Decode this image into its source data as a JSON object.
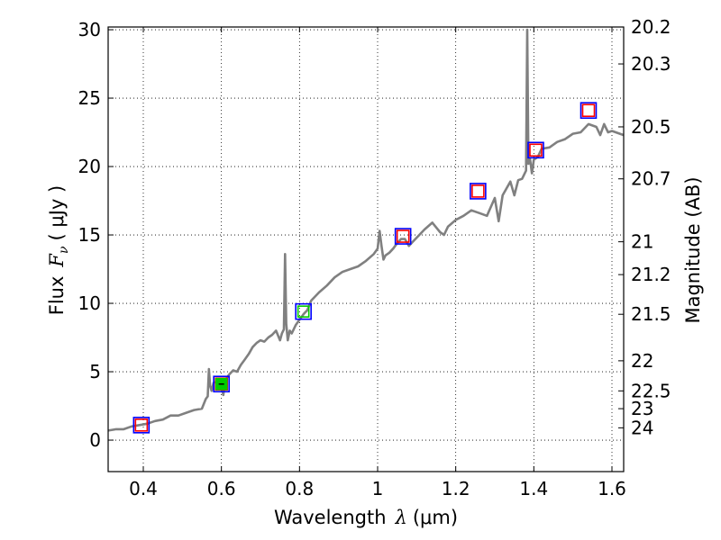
{
  "chart_data": {
    "type": "line",
    "xlabel_text": "Wavelength",
    "xlabel_unit": "(μm)",
    "ylabel_text": "Flux",
    "ylabel_unit": "(  μJy )",
    "y2label": "Magnitude (AB)",
    "xlim": [
      0.31,
      1.63
    ],
    "ylim": [
      -2.3,
      30.2
    ],
    "xticks": [
      0.4,
      0.6,
      0.8,
      1.0,
      1.2,
      1.4,
      1.6
    ],
    "xtick_labels": [
      "0.4",
      "0.6",
      "0.8",
      "1",
      "1.2",
      "1.4",
      "1.6"
    ],
    "yticks": [
      0,
      5,
      10,
      15,
      20,
      25,
      30
    ],
    "ytick_labels": [
      "0",
      "5",
      "10",
      "15",
      "20",
      "25",
      "30"
    ],
    "y2ticks": [
      {
        "label": "20.2",
        "flux": 30.2
      },
      {
        "label": "20.3",
        "flux": 27.5
      },
      {
        "label": "20.5",
        "flux": 22.9
      },
      {
        "label": "20.7",
        "flux": 19.1
      },
      {
        "label": "21",
        "flux": 14.5
      },
      {
        "label": "21.2",
        "flux": 12.1
      },
      {
        "label": "21.5",
        "flux": 9.2
      },
      {
        "label": "22",
        "flux": 5.8
      },
      {
        "label": "22.5",
        "flux": 3.6
      },
      {
        "label": "23",
        "flux": 2.3
      },
      {
        "label": "24",
        "flux": 0.9
      }
    ],
    "grid": true,
    "series": [
      {
        "name": "spectrum",
        "color": "#808080",
        "x": [
          0.31,
          0.33,
          0.35,
          0.37,
          0.39,
          0.41,
          0.43,
          0.45,
          0.47,
          0.49,
          0.51,
          0.53,
          0.55,
          0.56,
          0.565,
          0.568,
          0.571,
          0.575,
          0.58,
          0.59,
          0.6,
          0.605,
          0.61,
          0.62,
          0.63,
          0.64,
          0.65,
          0.66,
          0.67,
          0.68,
          0.69,
          0.7,
          0.71,
          0.72,
          0.73,
          0.74,
          0.75,
          0.755,
          0.76,
          0.763,
          0.766,
          0.77,
          0.775,
          0.78,
          0.79,
          0.8,
          0.81,
          0.82,
          0.83,
          0.85,
          0.87,
          0.89,
          0.91,
          0.93,
          0.95,
          0.97,
          0.99,
          1.0,
          1.005,
          1.01,
          1.015,
          1.02,
          1.03,
          1.04,
          1.05,
          1.06,
          1.07,
          1.08,
          1.09,
          1.1,
          1.12,
          1.14,
          1.16,
          1.17,
          1.18,
          1.2,
          1.22,
          1.24,
          1.26,
          1.28,
          1.3,
          1.31,
          1.32,
          1.33,
          1.34,
          1.35,
          1.36,
          1.37,
          1.38,
          1.383,
          1.386,
          1.39,
          1.395,
          1.4,
          1.41,
          1.42,
          1.44,
          1.46,
          1.48,
          1.5,
          1.52,
          1.54,
          1.56,
          1.57,
          1.58,
          1.59,
          1.6,
          1.63
        ],
        "y": [
          0.7,
          0.8,
          0.8,
          1.0,
          1.1,
          1.2,
          1.4,
          1.5,
          1.8,
          1.8,
          2.0,
          2.2,
          2.3,
          3.0,
          3.2,
          5.2,
          4.0,
          3.6,
          4.2,
          4.3,
          4.0,
          3.3,
          4.4,
          4.8,
          5.1,
          5.0,
          5.5,
          5.9,
          6.3,
          6.8,
          7.1,
          7.3,
          7.2,
          7.5,
          7.7,
          8.0,
          7.3,
          7.8,
          8.1,
          13.6,
          8.5,
          7.3,
          8.0,
          7.8,
          8.4,
          8.8,
          9.2,
          9.5,
          10.2,
          10.8,
          11.3,
          11.9,
          12.3,
          12.5,
          12.7,
          13.1,
          13.6,
          14.0,
          15.3,
          14.2,
          13.2,
          13.5,
          13.7,
          14.0,
          14.4,
          14.7,
          14.7,
          14.2,
          14.5,
          14.8,
          15.4,
          15.9,
          15.2,
          15.0,
          15.6,
          16.1,
          16.4,
          16.8,
          16.6,
          16.4,
          17.7,
          16.0,
          17.9,
          18.4,
          18.9,
          17.9,
          19.0,
          19.1,
          19.7,
          30.0,
          20.2,
          20.6,
          19.5,
          20.5,
          20.7,
          21.3,
          21.4,
          21.8,
          22.0,
          22.4,
          22.5,
          23.1,
          22.9,
          22.3,
          23.1,
          22.5,
          22.6,
          22.3
        ]
      },
      {
        "name": "photometry-blue",
        "color": "#0000ff",
        "x": [
          0.395,
          0.6,
          0.81,
          1.065,
          1.257,
          1.405,
          1.54
        ],
        "y": [
          1.1,
          4.1,
          9.4,
          14.9,
          18.2,
          21.2,
          24.1
        ]
      },
      {
        "name": "photometry-red",
        "color": "#ff0000",
        "x": [
          0.395,
          0.6,
          1.065,
          1.257,
          1.405,
          1.54
        ],
        "y": [
          1.1,
          4.1,
          14.9,
          18.2,
          21.2,
          24.1
        ]
      },
      {
        "name": "photometry-green",
        "color": "#00cc00",
        "x": [
          0.6,
          0.81
        ],
        "y": [
          4.1,
          9.4
        ]
      }
    ]
  }
}
